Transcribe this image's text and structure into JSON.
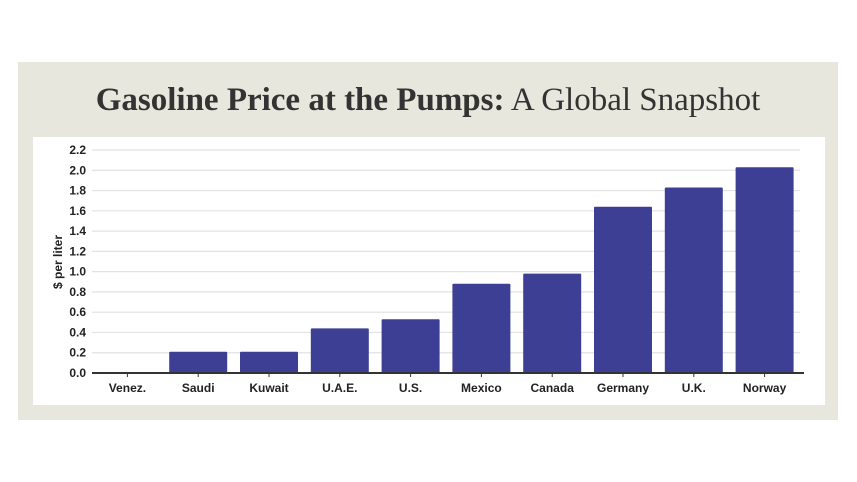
{
  "title_bold": "Gasoline Price at the Pumps:",
  "title_rest": " A Global Snapshot",
  "chart_data": {
    "type": "bar",
    "title": "Gasoline Price at the Pumps: A Global Snapshot",
    "ylabel": "$ per liter",
    "xlabel": "",
    "categories": [
      "Venez.",
      "Saudi",
      "Kuwait",
      "U.A.E.",
      "U.S.",
      "Mexico",
      "Canada",
      "Germany",
      "U.K.",
      "Norway"
    ],
    "values": [
      0.01,
      0.21,
      0.21,
      0.44,
      0.53,
      0.88,
      0.98,
      1.64,
      1.83,
      2.03
    ],
    "ylim": [
      0,
      2.2
    ],
    "yticks": [
      "0.0",
      "0.2",
      "0.4",
      "0.6",
      "0.8",
      "1.0",
      "1.2",
      "1.4",
      "1.6",
      "1.8",
      "2.0",
      "2.2"
    ],
    "grid": true,
    "bar_color": "#3c3f94"
  }
}
